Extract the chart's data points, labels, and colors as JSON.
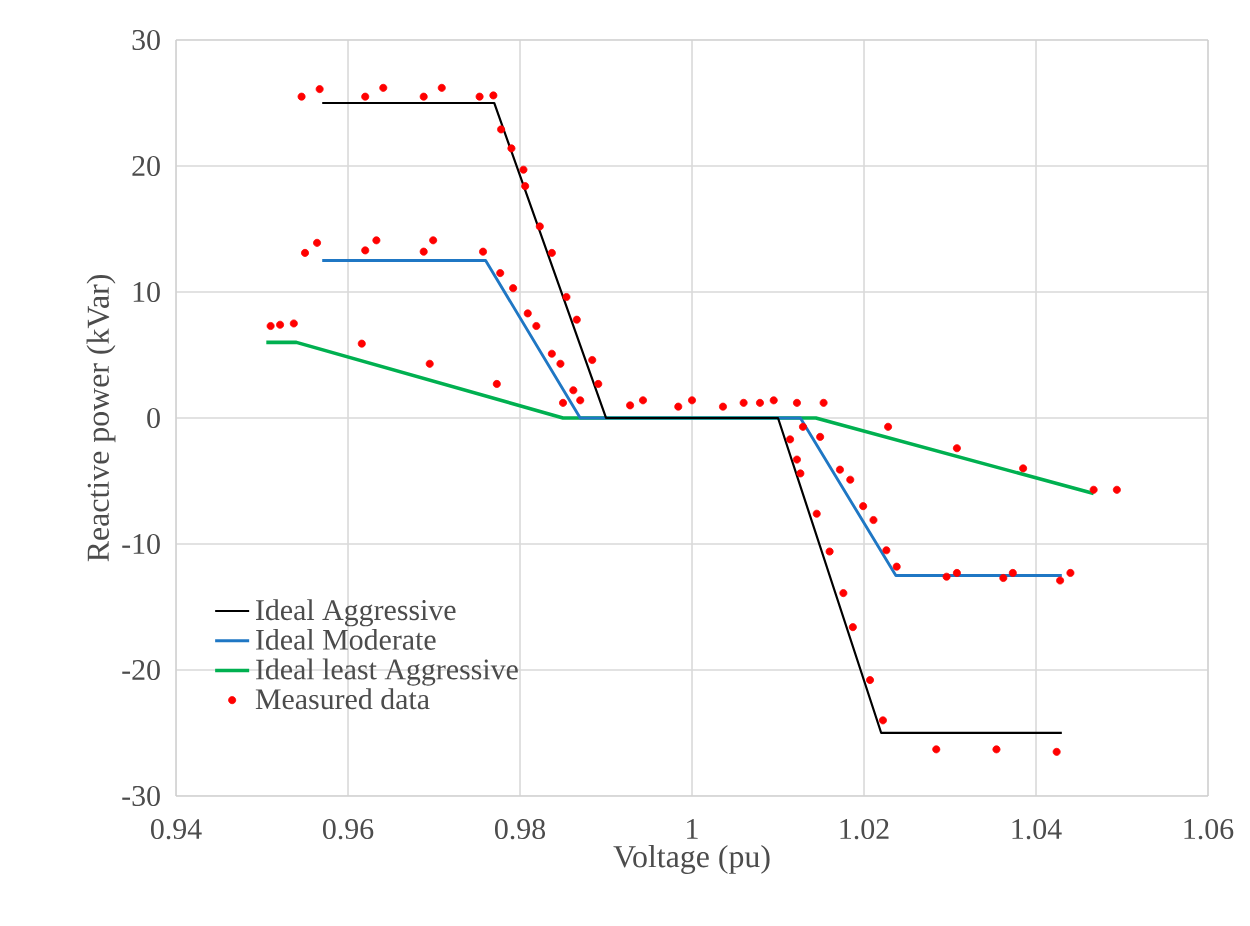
{
  "chart_data": {
    "type": "scatter",
    "xlabel": "Voltage (pu)",
    "ylabel": "Reactive power (kVar)",
    "xlim": [
      0.94,
      1.06
    ],
    "xticks": [
      0.94,
      0.96,
      0.98,
      1,
      1.02,
      1.04,
      1.06
    ],
    "ylim": [
      -30,
      30
    ],
    "yticks": [
      -30,
      -20,
      -10,
      0,
      10,
      20,
      30
    ],
    "grid": true,
    "legend": "left",
    "series": [
      {
        "name": "Measured data",
        "marker": "circle",
        "color": "#ff0000",
        "x": [
          0.9546,
          0.9567,
          0.962,
          0.9641,
          0.9688,
          0.9709,
          0.9753,
          0.9769,
          0.9778,
          0.979,
          0.9804,
          0.9806,
          0.9823,
          0.9837,
          0.9854,
          0.9866,
          0.9884,
          0.9891,
          0.955,
          0.9564,
          0.962,
          0.9633,
          0.9688,
          0.9699,
          0.9757,
          0.9777,
          0.9792,
          0.9809,
          0.9819,
          0.9837,
          0.9847,
          0.9862,
          0.987,
          0.985,
          0.951,
          0.9521,
          0.9537,
          0.9616,
          0.9695,
          0.9773,
          0.9928,
          0.9943,
          0.9984,
          1.0,
          1.0036,
          1.006,
          1.0079,
          1.0095,
          1.0122,
          1.0153,
          1.0228,
          1.0308,
          1.0385,
          1.0467,
          1.0494,
          1.0129,
          1.0149,
          1.0172,
          1.0184,
          1.0199,
          1.0211,
          1.0226,
          1.0238,
          1.0296,
          1.0308,
          1.0362,
          1.0373,
          1.0428,
          1.044,
          1.0114,
          1.0122,
          1.0126,
          1.0145,
          1.016,
          1.0176,
          1.0187,
          1.0207,
          1.0222,
          1.0284,
          1.0354,
          1.0424
        ],
        "values": [
          25.5,
          26.1,
          25.5,
          26.2,
          25.5,
          26.2,
          25.5,
          25.6,
          22.9,
          21.4,
          19.7,
          18.4,
          15.2,
          13.1,
          9.6,
          7.8,
          4.6,
          2.7,
          13.1,
          13.9,
          13.3,
          14.1,
          13.2,
          14.1,
          13.2,
          11.5,
          10.3,
          8.3,
          7.3,
          5.1,
          4.3,
          2.2,
          1.4,
          1.2,
          7.3,
          7.4,
          7.5,
          5.9,
          4.3,
          2.7,
          1.0,
          1.4,
          0.9,
          1.4,
          0.9,
          1.2,
          1.2,
          1.4,
          1.2,
          1.2,
          -0.7,
          -2.4,
          -4.0,
          -5.7,
          -5.7,
          -0.7,
          -1.5,
          -4.1,
          -4.9,
          -7.0,
          -8.1,
          -10.5,
          -11.8,
          -12.6,
          -12.3,
          -12.7,
          -12.3,
          -12.9,
          -12.3,
          -1.7,
          -3.3,
          -4.4,
          -7.6,
          -10.6,
          -13.9,
          -16.6,
          -20.8,
          -24.0,
          -26.3,
          -26.3,
          -26.5
        ]
      },
      {
        "name": "Ideal Aggressive",
        "type": "line",
        "marker": "none",
        "line_style": "solid",
        "color": "#000000",
        "x": [
          0.957,
          0.977,
          0.99,
          1.01,
          1.022,
          1.043
        ],
        "values": [
          25,
          25,
          0,
          0,
          -25,
          -25
        ]
      },
      {
        "name": "Ideal Moderate",
        "type": "line",
        "marker": "none",
        "line_style": "solid",
        "color": "#1f77c4",
        "x": [
          0.957,
          0.976,
          0.987,
          1.0126,
          1.0237,
          1.043
        ],
        "values": [
          12.5,
          12.5,
          0,
          0,
          -12.5,
          -12.5
        ]
      },
      {
        "name": "Ideal least Aggressive",
        "type": "line",
        "marker": "none",
        "line_style": "solid",
        "color": "#00b050",
        "x": [
          0.9505,
          0.954,
          0.985,
          1.0144,
          1.0467
        ],
        "values": [
          6,
          6,
          0,
          0,
          -6
        ]
      }
    ]
  }
}
